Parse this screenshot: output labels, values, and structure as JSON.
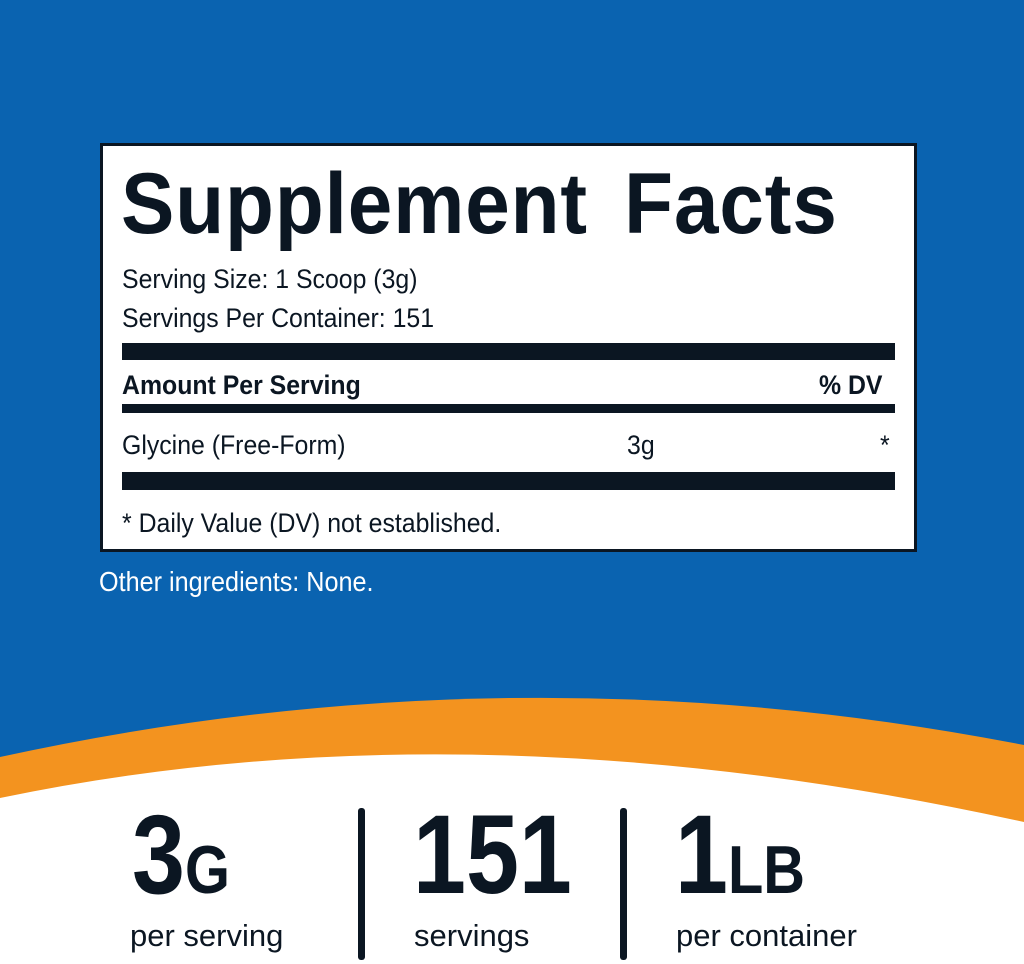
{
  "colors": {
    "background_blue": "#0a63b0",
    "accent_orange": "#f3931f",
    "text_dark": "#0b1622"
  },
  "facts": {
    "title": "Supplement Facts",
    "serving_size": "Serving Size: 1 Scoop (3g)",
    "servings_per_container": "Servings Per Container: 151",
    "amount_header": "Amount Per Serving",
    "dv_header": "% DV",
    "ingredient": {
      "name": "Glycine (Free-Form)",
      "amount": "3g",
      "dv": "*"
    },
    "footnote": "* Daily Value (DV) not established."
  },
  "other_ingredients": "Other ingredients: None.",
  "stats": [
    {
      "value": "3",
      "unit": "G",
      "label": "per serving"
    },
    {
      "value": "151",
      "unit": "",
      "label": "servings"
    },
    {
      "value": "1",
      "unit": "LB",
      "label": "per container"
    }
  ]
}
